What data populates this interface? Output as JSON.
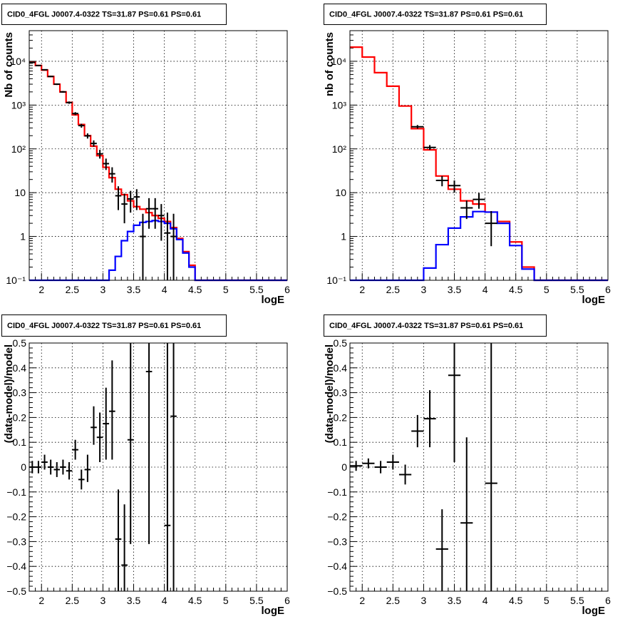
{
  "chart_data": [
    {
      "type": "histogram",
      "panel": "top-left",
      "title": "CID0_4FGL J0007.4-0322 TS=31.87 PS=0.61 PS=0.61",
      "xlabel": "logE",
      "ylabel": "Nb of counts",
      "xlim": [
        1.8,
        6.0
      ],
      "ylim": [
        0.1,
        50000
      ],
      "yscale": "log",
      "grid": true,
      "xticks": [
        "2",
        "2.5",
        "3",
        "3.5",
        "4",
        "4.5",
        "5",
        "5.5",
        "6"
      ],
      "yticks": [
        "10⁻¹",
        "1",
        "10",
        "10²",
        "10³",
        "10⁴"
      ],
      "bin_edges": [
        1.8,
        1.9,
        2.0,
        2.1,
        2.2,
        2.3,
        2.4,
        2.5,
        2.6,
        2.7,
        2.8,
        2.9,
        3.0,
        3.1,
        3.2,
        3.3,
        3.4,
        3.5,
        3.6,
        3.7,
        3.8,
        3.9,
        4.0,
        4.1,
        4.2,
        4.3,
        4.4,
        4.5,
        4.6,
        4.7,
        4.8,
        4.9,
        5.0,
        5.1,
        5.2,
        5.3,
        5.4,
        5.5,
        5.6,
        5.7,
        5.8,
        5.9,
        6.0
      ],
      "series": [
        {
          "color": "#ff0000",
          "values": [
            9500,
            8000,
            6300,
            4500,
            3000,
            2000,
            1150,
            600,
            360,
            200,
            115,
            70,
            38,
            22,
            12,
            9,
            6.5,
            4.8,
            4.2,
            3.5,
            3.0,
            2.6,
            2.2,
            1.6,
            0.9,
            0.45,
            0.22,
            0.1,
            0.1,
            0.1,
            0.1,
            0.1,
            0.1,
            0.1,
            0.1,
            0.1,
            0.1,
            0.1,
            0.1,
            0.1,
            0.1,
            0.1
          ]
        },
        {
          "color": "#0000ff",
          "values": [
            0.1,
            0.1,
            0.1,
            0.1,
            0.1,
            0.1,
            0.1,
            0.1,
            0.1,
            0.1,
            0.1,
            0.1,
            0.1,
            0.17,
            0.35,
            0.8,
            1.3,
            1.8,
            2.1,
            2.2,
            2.3,
            2.2,
            2.0,
            1.5,
            0.85,
            0.42,
            0.2,
            0.1,
            0.1,
            0.1,
            0.1,
            0.1,
            0.1,
            0.1,
            0.1,
            0.1,
            0.1,
            0.1,
            0.1,
            0.1,
            0.1,
            0.1
          ]
        }
      ],
      "points": [
        {
          "x": 1.85,
          "y": 9400,
          "ylo": 9200,
          "yhi": 9600
        },
        {
          "x": 1.95,
          "y": 8000,
          "ylo": 7800,
          "yhi": 8200
        },
        {
          "x": 2.05,
          "y": 6400,
          "ylo": 6200,
          "yhi": 6600
        },
        {
          "x": 2.15,
          "y": 4500,
          "ylo": 4350,
          "yhi": 4650
        },
        {
          "x": 2.25,
          "y": 3000,
          "ylo": 2880,
          "yhi": 3120
        },
        {
          "x": 2.35,
          "y": 2000,
          "ylo": 1910,
          "yhi": 2090
        },
        {
          "x": 2.45,
          "y": 1140,
          "ylo": 1070,
          "yhi": 1210
        },
        {
          "x": 2.55,
          "y": 640,
          "ylo": 590,
          "yhi": 690
        },
        {
          "x": 2.65,
          "y": 340,
          "ylo": 305,
          "yhi": 375
        },
        {
          "x": 2.75,
          "y": 198,
          "ylo": 172,
          "yhi": 226
        },
        {
          "x": 2.85,
          "y": 133,
          "ylo": 112,
          "yhi": 156
        },
        {
          "x": 2.95,
          "y": 77,
          "ylo": 60,
          "yhi": 95
        },
        {
          "x": 3.05,
          "y": 46,
          "ylo": 33,
          "yhi": 60
        },
        {
          "x": 3.15,
          "y": 27,
          "ylo": 17,
          "yhi": 38
        },
        {
          "x": 3.25,
          "y": 8.5,
          "ylo": 4,
          "yhi": 14
        },
        {
          "x": 3.35,
          "y": 5.5,
          "ylo": 2,
          "yhi": 9.5
        },
        {
          "x": 3.45,
          "y": 7.2,
          "ylo": 3.5,
          "yhi": 11
        },
        {
          "x": 3.55,
          "y": 8,
          "ylo": 4,
          "yhi": 12
        },
        {
          "x": 3.65,
          "y": 1.0,
          "ylo": 0.1,
          "yhi": 3.3
        },
        {
          "x": 3.75,
          "y": 4.3,
          "ylo": 1.5,
          "yhi": 7.5
        },
        {
          "x": 3.85,
          "y": 4.3,
          "ylo": 1.5,
          "yhi": 7.5
        },
        {
          "x": 3.95,
          "y": 3.0,
          "ylo": 0.8,
          "yhi": 5.5
        },
        {
          "x": 4.05,
          "y": 1.2,
          "ylo": 0.1,
          "yhi": 3.5
        },
        {
          "x": 4.15,
          "y": 1.0,
          "ylo": 0.1,
          "yhi": 3.3
        }
      ]
    },
    {
      "type": "histogram",
      "panel": "top-right",
      "title": "CID0_4FGL J0007.4-0322 TS=31.87 PS=0.61 PS=0.61",
      "xlabel": "logE",
      "ylabel": "nb of counts",
      "xlim": [
        1.8,
        6.0
      ],
      "ylim": [
        0.1,
        50000
      ],
      "yscale": "log",
      "grid": true,
      "xticks": [
        "2",
        "2.5",
        "3",
        "3.5",
        "4",
        "4.5",
        "5",
        "5.5",
        "6"
      ],
      "yticks": [
        "10⁻¹",
        "1",
        "10",
        "10²",
        "10³",
        "10⁴"
      ],
      "bin_edges": [
        1.8,
        2.0,
        2.2,
        2.4,
        2.6,
        2.8,
        3.0,
        3.2,
        3.4,
        3.6,
        3.8,
        4.0,
        4.2,
        4.4,
        4.6,
        4.8,
        5.0,
        5.2,
        5.4,
        5.6,
        5.8,
        6.0
      ],
      "series": [
        {
          "color": "#ff0000",
          "values": [
            21000,
            12500,
            5500,
            2700,
            950,
            290,
            95,
            24,
            12,
            6.5,
            5.5,
            3.6,
            2.2,
            0.75,
            0.2,
            0.1,
            0.1,
            0.1,
            0.1,
            0.1,
            0.1
          ]
        },
        {
          "color": "#0000ff",
          "values": [
            0.1,
            0.1,
            0.1,
            0.1,
            0.1,
            0.1,
            0.19,
            0.65,
            1.55,
            2.8,
            3.7,
            3.6,
            2.0,
            0.62,
            0.18,
            0.1,
            0.1,
            0.1,
            0.1,
            0.1,
            0.1
          ]
        }
      ],
      "points": [
        {
          "x": 2.9,
          "y": 320,
          "ylo": 290,
          "yhi": 350
        },
        {
          "x": 3.1,
          "y": 108,
          "ylo": 95,
          "yhi": 122
        },
        {
          "x": 3.3,
          "y": 19,
          "ylo": 14,
          "yhi": 24
        },
        {
          "x": 3.5,
          "y": 14.5,
          "ylo": 10,
          "yhi": 19
        },
        {
          "x": 3.7,
          "y": 4.5,
          "ylo": 2.5,
          "yhi": 6.6
        },
        {
          "x": 3.9,
          "y": 7,
          "ylo": 4.3,
          "yhi": 9.8
        },
        {
          "x": 4.1,
          "y": 2.0,
          "ylo": 0.6,
          "yhi": 3.8
        }
      ]
    },
    {
      "type": "scatter",
      "panel": "bottom-left",
      "title": "CID0_4FGL J0007.4-0322 TS=31.87 PS=0.61 PS=0.61",
      "xlabel": "logE",
      "ylabel": "(data-model)/model",
      "xlim": [
        1.8,
        6.0
      ],
      "ylim": [
        -0.5,
        0.5
      ],
      "grid": true,
      "xticks": [
        "2",
        "2.5",
        "3",
        "3.5",
        "4",
        "4.5",
        "5",
        "5.5",
        "6"
      ],
      "yticks": [
        "−0.5",
        "−0.4",
        "−0.3",
        "−0.2",
        "−0.1",
        "0",
        "0.1",
        "0.2",
        "0.3",
        "0.4",
        "0.5"
      ],
      "halfwidth": 0.05,
      "points": [
        {
          "x": 1.85,
          "y": 0.0,
          "ylo": -0.025,
          "yhi": 0.025
        },
        {
          "x": 1.95,
          "y": 0.0,
          "ylo": -0.025,
          "yhi": 0.025
        },
        {
          "x": 2.05,
          "y": 0.02,
          "ylo": -0.01,
          "yhi": 0.05
        },
        {
          "x": 2.15,
          "y": 0.0,
          "ylo": -0.03,
          "yhi": 0.03
        },
        {
          "x": 2.25,
          "y": -0.01,
          "ylo": -0.04,
          "yhi": 0.02
        },
        {
          "x": 2.35,
          "y": 0.0,
          "ylo": -0.03,
          "yhi": 0.03
        },
        {
          "x": 2.45,
          "y": -0.015,
          "ylo": -0.05,
          "yhi": 0.02
        },
        {
          "x": 2.55,
          "y": 0.07,
          "ylo": 0.03,
          "yhi": 0.11
        },
        {
          "x": 2.65,
          "y": -0.05,
          "ylo": -0.09,
          "yhi": -0.01
        },
        {
          "x": 2.75,
          "y": -0.01,
          "ylo": -0.06,
          "yhi": 0.05
        },
        {
          "x": 2.85,
          "y": 0.16,
          "ylo": 0.09,
          "yhi": 0.245
        },
        {
          "x": 2.95,
          "y": 0.12,
          "ylo": 0.02,
          "yhi": 0.22
        },
        {
          "x": 3.05,
          "y": 0.175,
          "ylo": 0.03,
          "yhi": 0.32
        },
        {
          "x": 3.15,
          "y": 0.225,
          "ylo": 0.03,
          "yhi": 0.43
        },
        {
          "x": 3.25,
          "y": -0.29,
          "ylo": -0.5,
          "yhi": -0.09
        },
        {
          "x": 3.35,
          "y": -0.395,
          "ylo": -0.5,
          "yhi": -0.15
        },
        {
          "x": 3.45,
          "y": 0.11,
          "ylo": -0.31,
          "yhi": 0.5
        },
        {
          "x": 3.75,
          "y": 0.385,
          "ylo": -0.31,
          "yhi": 0.5
        },
        {
          "x": 4.05,
          "y": -0.235,
          "ylo": -0.5,
          "yhi": 0.5
        },
        {
          "x": 4.15,
          "y": 0.205,
          "ylo": -0.5,
          "yhi": 0.5
        }
      ]
    },
    {
      "type": "scatter",
      "panel": "bottom-right",
      "title": "CID0_4FGL J0007.4-0322 TS=31.87 PS=0.61 PS=0.61",
      "xlabel": "logE",
      "ylabel": "(data-model)/model",
      "xlim": [
        1.8,
        6.0
      ],
      "ylim": [
        -0.5,
        0.5
      ],
      "grid": true,
      "xticks": [
        "2",
        "2.5",
        "3",
        "3.5",
        "4",
        "4.5",
        "5",
        "5.5",
        "6"
      ],
      "yticks": [
        "−0.5",
        "−0.4",
        "−0.3",
        "−0.2",
        "−0.1",
        "0",
        "0.1",
        "0.2",
        "0.3",
        "0.4",
        "0.5"
      ],
      "halfwidth": 0.1,
      "points": [
        {
          "x": 1.9,
          "y": 0.005,
          "ylo": -0.015,
          "yhi": 0.025
        },
        {
          "x": 2.1,
          "y": 0.015,
          "ylo": -0.005,
          "yhi": 0.035
        },
        {
          "x": 2.3,
          "y": 0.0,
          "ylo": -0.025,
          "yhi": 0.025
        },
        {
          "x": 2.5,
          "y": 0.02,
          "ylo": -0.01,
          "yhi": 0.05
        },
        {
          "x": 2.7,
          "y": -0.03,
          "ylo": -0.07,
          "yhi": 0.01
        },
        {
          "x": 2.9,
          "y": 0.145,
          "ylo": 0.08,
          "yhi": 0.21
        },
        {
          "x": 3.1,
          "y": 0.195,
          "ylo": 0.08,
          "yhi": 0.31
        },
        {
          "x": 3.3,
          "y": -0.33,
          "ylo": -0.5,
          "yhi": -0.17
        },
        {
          "x": 3.5,
          "y": 0.37,
          "ylo": 0.02,
          "yhi": 0.5
        },
        {
          "x": 3.7,
          "y": -0.225,
          "ylo": -0.5,
          "yhi": 0.12
        },
        {
          "x": 4.1,
          "y": -0.065,
          "ylo": -0.5,
          "yhi": 0.5
        }
      ]
    }
  ]
}
